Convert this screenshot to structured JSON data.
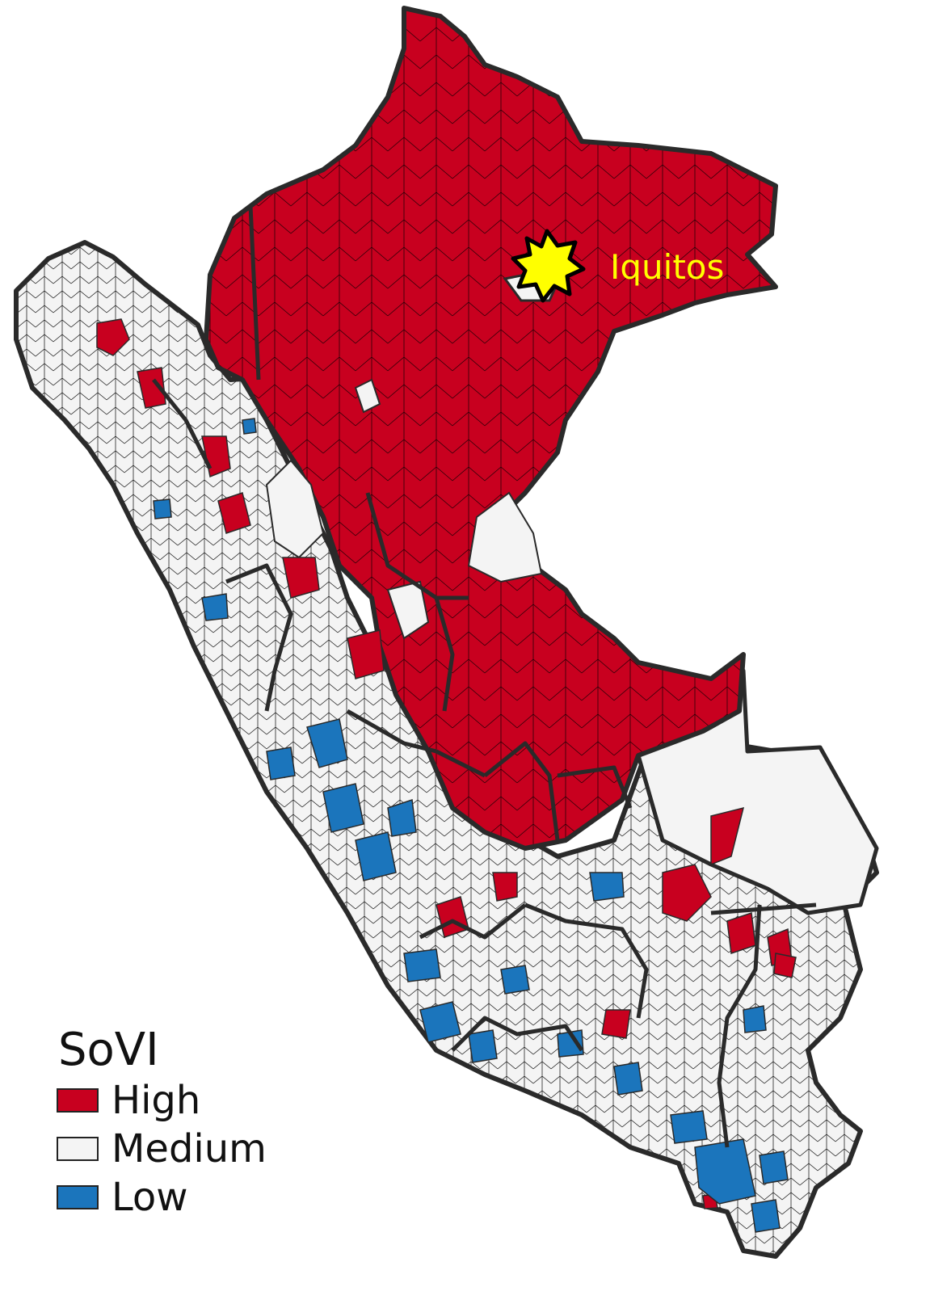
{
  "legend": {
    "title": "SoVI",
    "items": [
      {
        "label": "High",
        "color": "#c8001f"
      },
      {
        "label": "Medium",
        "color": "#f4f4f4"
      },
      {
        "label": "Low",
        "color": "#1b75bc"
      }
    ]
  },
  "city": {
    "label": "Iquitos",
    "marker_color": "#ffff00"
  },
  "colors": {
    "border": "#2a2a2a",
    "background": "#ffffff"
  }
}
